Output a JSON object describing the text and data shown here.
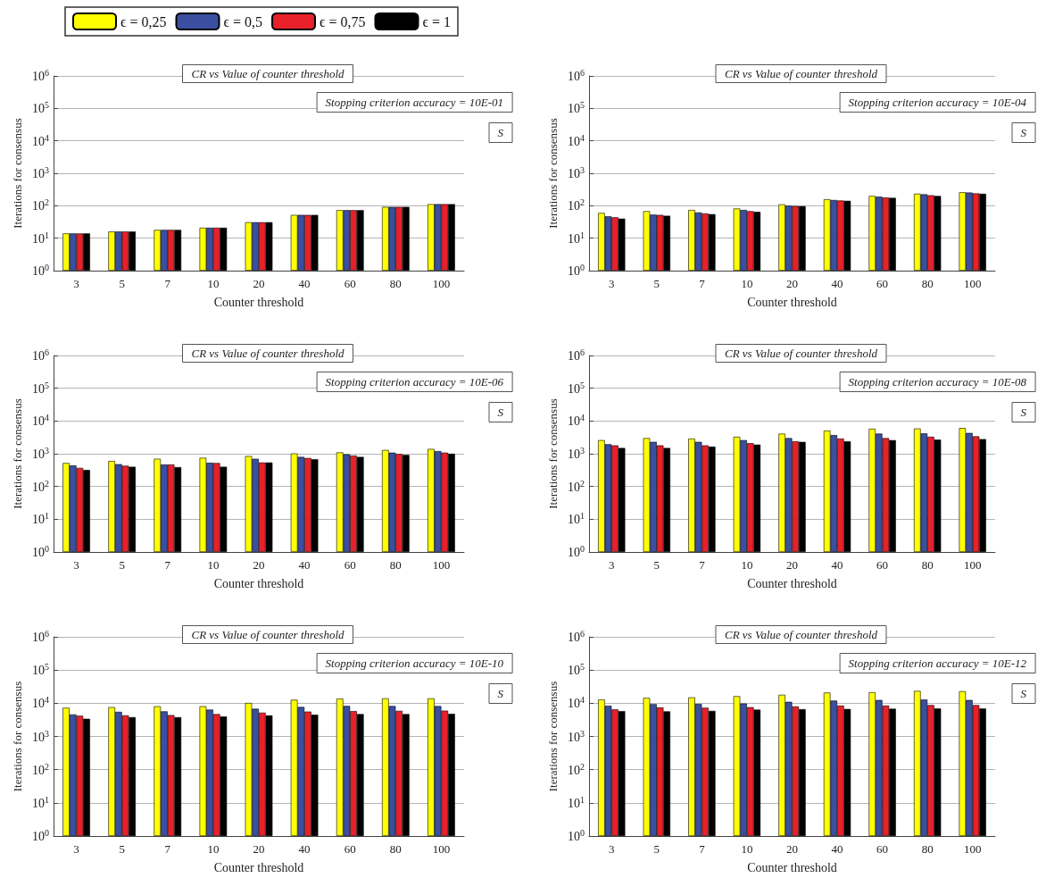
{
  "chart_data": [
    {
      "type": "bar",
      "title": "CR vs Value of counter threshold",
      "annotations": [
        "Stopping criterion accuracy = 10E-01",
        "S"
      ],
      "xlabel": "Counter threshold",
      "ylabel": "Iterations for consensus",
      "categories": [
        "3",
        "5",
        "7",
        "10",
        "20",
        "40",
        "60",
        "80",
        "100"
      ],
      "log": true,
      "ylim": [
        1,
        1000000
      ],
      "yticks": [
        {
          "value": 1,
          "label": "10$^{0}$"
        },
        {
          "value": 10,
          "label": "10$^{1}$"
        },
        {
          "value": 100,
          "label": "10$^{2}$"
        },
        {
          "value": 1000,
          "label": "10$^{3}$"
        },
        {
          "value": 10000,
          "label": "10$^{4}$"
        },
        {
          "value": 100000,
          "label": "10$^{5}$"
        },
        {
          "value": 1000000,
          "label": "10$^{6}$"
        }
      ],
      "grid": "y",
      "legend": "top",
      "series": [
        {
          "name": "ϵ = 0,25",
          "color": "#ffff00",
          "values": [
            14,
            16,
            18,
            21,
            31,
            52,
            73,
            92,
            112
          ]
        },
        {
          "name": "ϵ = 0,5",
          "color": "#3a4fa0",
          "values": [
            14,
            16,
            18,
            21,
            31,
            52,
            73,
            92,
            112
          ]
        },
        {
          "name": "ϵ = 0,75",
          "color": "#e8202a",
          "values": [
            14,
            16,
            18,
            21,
            31,
            52,
            73,
            92,
            112
          ]
        },
        {
          "name": "ϵ = 1",
          "color": "#000000",
          "values": [
            14,
            16,
            18,
            21,
            31,
            52,
            73,
            92,
            112
          ]
        }
      ]
    },
    {
      "type": "bar",
      "title": "CR vs Value of counter threshold",
      "annotations": [
        "Stopping criterion accuracy = 10E-04",
        "S"
      ],
      "xlabel": "Counter threshold",
      "ylabel": "Iterations for consensus",
      "categories": [
        "3",
        "5",
        "7",
        "10",
        "20",
        "40",
        "60",
        "80",
        "100"
      ],
      "log": true,
      "ylim": [
        1,
        1000000
      ],
      "yticks": [
        {
          "value": 1,
          "label": "10$^{0}$"
        },
        {
          "value": 10,
          "label": "10$^{1}$"
        },
        {
          "value": 100,
          "label": "10$^{2}$"
        },
        {
          "value": 1000,
          "label": "10$^{3}$"
        },
        {
          "value": 10000,
          "label": "10$^{4}$"
        },
        {
          "value": 100000,
          "label": "10$^{5}$"
        },
        {
          "value": 1000000,
          "label": "10$^{6}$"
        }
      ],
      "grid": "y",
      "series": [
        {
          "color": "#ffff00",
          "values": [
            60,
            68,
            74,
            82,
            110,
            158,
            200,
            235,
            260
          ]
        },
        {
          "color": "#3a4fa0",
          "values": [
            47,
            53,
            62,
            74,
            100,
            150,
            190,
            225,
            255
          ]
        },
        {
          "color": "#e8202a",
          "values": [
            44,
            52,
            58,
            68,
            98,
            145,
            180,
            210,
            240
          ]
        },
        {
          "color": "#000000",
          "values": [
            40,
            49,
            55,
            65,
            97,
            142,
            175,
            200,
            235
          ]
        }
      ]
    },
    {
      "type": "bar",
      "title": "CR vs Value of counter threshold",
      "annotations": [
        "Stopping criterion accuracy = 10E-06",
        "S"
      ],
      "xlabel": "Counter threshold",
      "ylabel": "Iterations for consensus",
      "categories": [
        "3",
        "5",
        "7",
        "10",
        "20",
        "40",
        "60",
        "80",
        "100"
      ],
      "log": true,
      "ylim": [
        1,
        1000000
      ],
      "yticks": [
        {
          "value": 1,
          "label": "10$^{0}$"
        },
        {
          "value": 10,
          "label": "10$^{1}$"
        },
        {
          "value": 100,
          "label": "10$^{2}$"
        },
        {
          "value": 1000,
          "label": "10$^{3}$"
        },
        {
          "value": 10000,
          "label": "10$^{4}$"
        },
        {
          "value": 100000,
          "label": "10$^{5}$"
        },
        {
          "value": 1000000,
          "label": "10$^{6}$"
        }
      ],
      "grid": "y",
      "series": [
        {
          "color": "#ffff00",
          "values": [
            520,
            600,
            700,
            750,
            850,
            1020,
            1100,
            1300,
            1400
          ]
        },
        {
          "color": "#3a4fa0",
          "values": [
            440,
            480,
            470,
            530,
            700,
            800,
            960,
            1080,
            1200
          ]
        },
        {
          "color": "#e8202a",
          "values": [
            370,
            430,
            470,
            520,
            540,
            740,
            880,
            980,
            1080
          ]
        },
        {
          "color": "#000000",
          "values": [
            320,
            400,
            390,
            400,
            540,
            680,
            800,
            920,
            1000
          ]
        }
      ]
    },
    {
      "type": "bar",
      "title": "CR vs Value of counter threshold",
      "annotations": [
        "Stopping criterion accuracy = 10E-08",
        "S"
      ],
      "xlabel": "Counter threshold",
      "ylabel": "Iterations for consensus",
      "categories": [
        "3",
        "5",
        "7",
        "10",
        "20",
        "40",
        "60",
        "80",
        "100"
      ],
      "log": true,
      "ylim": [
        1,
        1000000
      ],
      "yticks": [
        {
          "value": 1,
          "label": "10$^{0}$"
        },
        {
          "value": 10,
          "label": "10$^{1}$"
        },
        {
          "value": 100,
          "label": "10$^{2}$"
        },
        {
          "value": 1000,
          "label": "10$^{3}$"
        },
        {
          "value": 10000,
          "label": "10$^{4}$"
        },
        {
          "value": 100000,
          "label": "10$^{5}$"
        },
        {
          "value": 1000000,
          "label": "10$^{6}$"
        }
      ],
      "grid": "y",
      "series": [
        {
          "color": "#ffff00",
          "values": [
            2600,
            3000,
            2900,
            3300,
            4100,
            5100,
            5800,
            5900,
            6100
          ]
        },
        {
          "color": "#3a4fa0",
          "values": [
            1950,
            2300,
            2300,
            2600,
            3000,
            3700,
            4100,
            4200,
            4300
          ]
        },
        {
          "color": "#e8202a",
          "values": [
            1800,
            1800,
            1800,
            2100,
            2400,
            2900,
            3000,
            3300,
            3400
          ]
        },
        {
          "color": "#000000",
          "values": [
            1500,
            1500,
            1650,
            1900,
            2300,
            2400,
            2600,
            2700,
            2800
          ]
        }
      ]
    },
    {
      "type": "bar",
      "title": "CR vs Value of counter threshold",
      "annotations": [
        "Stopping criterion accuracy = 10E-10",
        "S"
      ],
      "xlabel": "Counter threshold",
      "ylabel": "Iterations for consensus",
      "categories": [
        "3",
        "5",
        "7",
        "10",
        "20",
        "40",
        "60",
        "80",
        "100"
      ],
      "log": true,
      "ylim": [
        1,
        1000000
      ],
      "yticks": [
        {
          "value": 1,
          "label": "10$^{0}$"
        },
        {
          "value": 10,
          "label": "10$^{1}$"
        },
        {
          "value": 100,
          "label": "10$^{2}$"
        },
        {
          "value": 1000,
          "label": "10$^{3}$"
        },
        {
          "value": 10000,
          "label": "10$^{4}$"
        },
        {
          "value": 100000,
          "label": "10$^{5}$"
        },
        {
          "value": 1000000,
          "label": "10$^{6}$"
        }
      ],
      "grid": "y",
      "series": [
        {
          "color": "#ffff00",
          "values": [
            7300,
            7600,
            8100,
            8100,
            10200,
            12700,
            13800,
            14000,
            14000
          ]
        },
        {
          "color": "#3a4fa0",
          "values": [
            4600,
            5500,
            5700,
            6400,
            6800,
            7700,
            8300,
            8200,
            8200
          ]
        },
        {
          "color": "#e8202a",
          "values": [
            4200,
            4300,
            4400,
            4700,
            5200,
            5600,
            5800,
            5900,
            6000
          ]
        },
        {
          "color": "#000000",
          "values": [
            3400,
            3800,
            3800,
            4000,
            4300,
            4500,
            4700,
            4700,
            4800
          ]
        }
      ]
    },
    {
      "type": "bar",
      "title": "CR vs Value of counter threshold",
      "annotations": [
        "Stopping criterion accuracy = 10E-12",
        "S"
      ],
      "xlabel": "Counter threshold",
      "ylabel": "Iterations for consensus",
      "categories": [
        "3",
        "5",
        "7",
        "10",
        "20",
        "40",
        "60",
        "80",
        "100"
      ],
      "log": true,
      "ylim": [
        1,
        1000000
      ],
      "yticks": [
        {
          "value": 1,
          "label": "10$^{0}$"
        },
        {
          "value": 10,
          "label": "10$^{1}$"
        },
        {
          "value": 100,
          "label": "10$^{2}$"
        },
        {
          "value": 1000,
          "label": "10$^{3}$"
        },
        {
          "value": 10000,
          "label": "10$^{4}$"
        },
        {
          "value": 100000,
          "label": "10$^{5}$"
        },
        {
          "value": 1000000,
          "label": "10$^{6}$"
        }
      ],
      "grid": "y",
      "series": [
        {
          "color": "#ffff00",
          "values": [
            13000,
            14500,
            15000,
            16300,
            18000,
            21000,
            21500,
            23500,
            23000
          ]
        },
        {
          "color": "#3a4fa0",
          "values": [
            8400,
            9400,
            9500,
            9800,
            11000,
            12000,
            12500,
            13000,
            12500
          ]
        },
        {
          "color": "#e8202a",
          "values": [
            6500,
            7500,
            7300,
            7600,
            8000,
            8500,
            8500,
            8800,
            8800
          ]
        },
        {
          "color": "#000000",
          "values": [
            5800,
            5700,
            5900,
            6400,
            6600,
            6700,
            6800,
            7000,
            6900
          ]
        }
      ]
    }
  ]
}
